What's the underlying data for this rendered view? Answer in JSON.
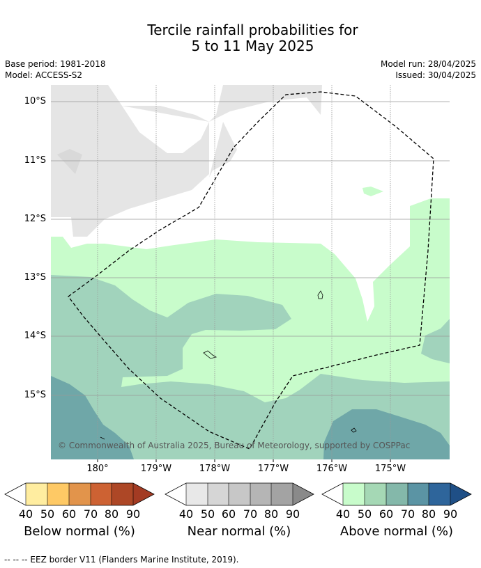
{
  "header": {
    "title_line1": "Tercile rainfall probabilities for",
    "title_line2": "5 to 11 May 2025",
    "base_period": "Base period: 1981-2018",
    "model": "Model: ACCESS-S2",
    "model_run": "Model run: 28/04/2025",
    "issued": "Issued: 30/04/2025"
  },
  "map": {
    "lat_labels": [
      "10°S",
      "11°S",
      "12°S",
      "13°S",
      "14°S",
      "15°S"
    ],
    "lon_labels": [
      "180°",
      "179°W",
      "178°W",
      "177°W",
      "176°W",
      "175°W"
    ],
    "credit": "© Commonwealth of Australia 2025, Bureau of Meteorology, supported by COSPPac",
    "colors": {
      "near_normal_40": "#e5e5e5",
      "above_normal_40": "#c8fccb",
      "above_normal_50": "#a1d3bc",
      "above_normal_60": "#6fa7a8",
      "grid": "#999999",
      "eez_line": "#000000"
    }
  },
  "colorbars": [
    {
      "title": "Below normal (%)",
      "ticks": [
        "40",
        "50",
        "60",
        "70",
        "80",
        "90"
      ],
      "colors": [
        "#ffffff",
        "#ffeda0",
        "#fec965",
        "#e2944b",
        "#cd6233",
        "#ad4726",
        "#a33b23"
      ]
    },
    {
      "title": "Near normal (%)",
      "ticks": [
        "40",
        "50",
        "60",
        "70",
        "80",
        "90"
      ],
      "colors": [
        "#ffffff",
        "#e8e8e8",
        "#d6d6d6",
        "#c7c7c7",
        "#b5b5b5",
        "#a3a3a3",
        "#8a8a8a"
      ]
    },
    {
      "title": "Above normal (%)",
      "ticks": [
        "40",
        "50",
        "60",
        "70",
        "80",
        "90"
      ],
      "colors": [
        "#ffffff",
        "#c8fccb",
        "#a5d8b5",
        "#84b8aa",
        "#5b94a4",
        "#2e659b",
        "#1f4f86"
      ]
    }
  ],
  "footnote": "-- -- -- EEZ border V11 (Flanders Marine Institute, 2019)."
}
